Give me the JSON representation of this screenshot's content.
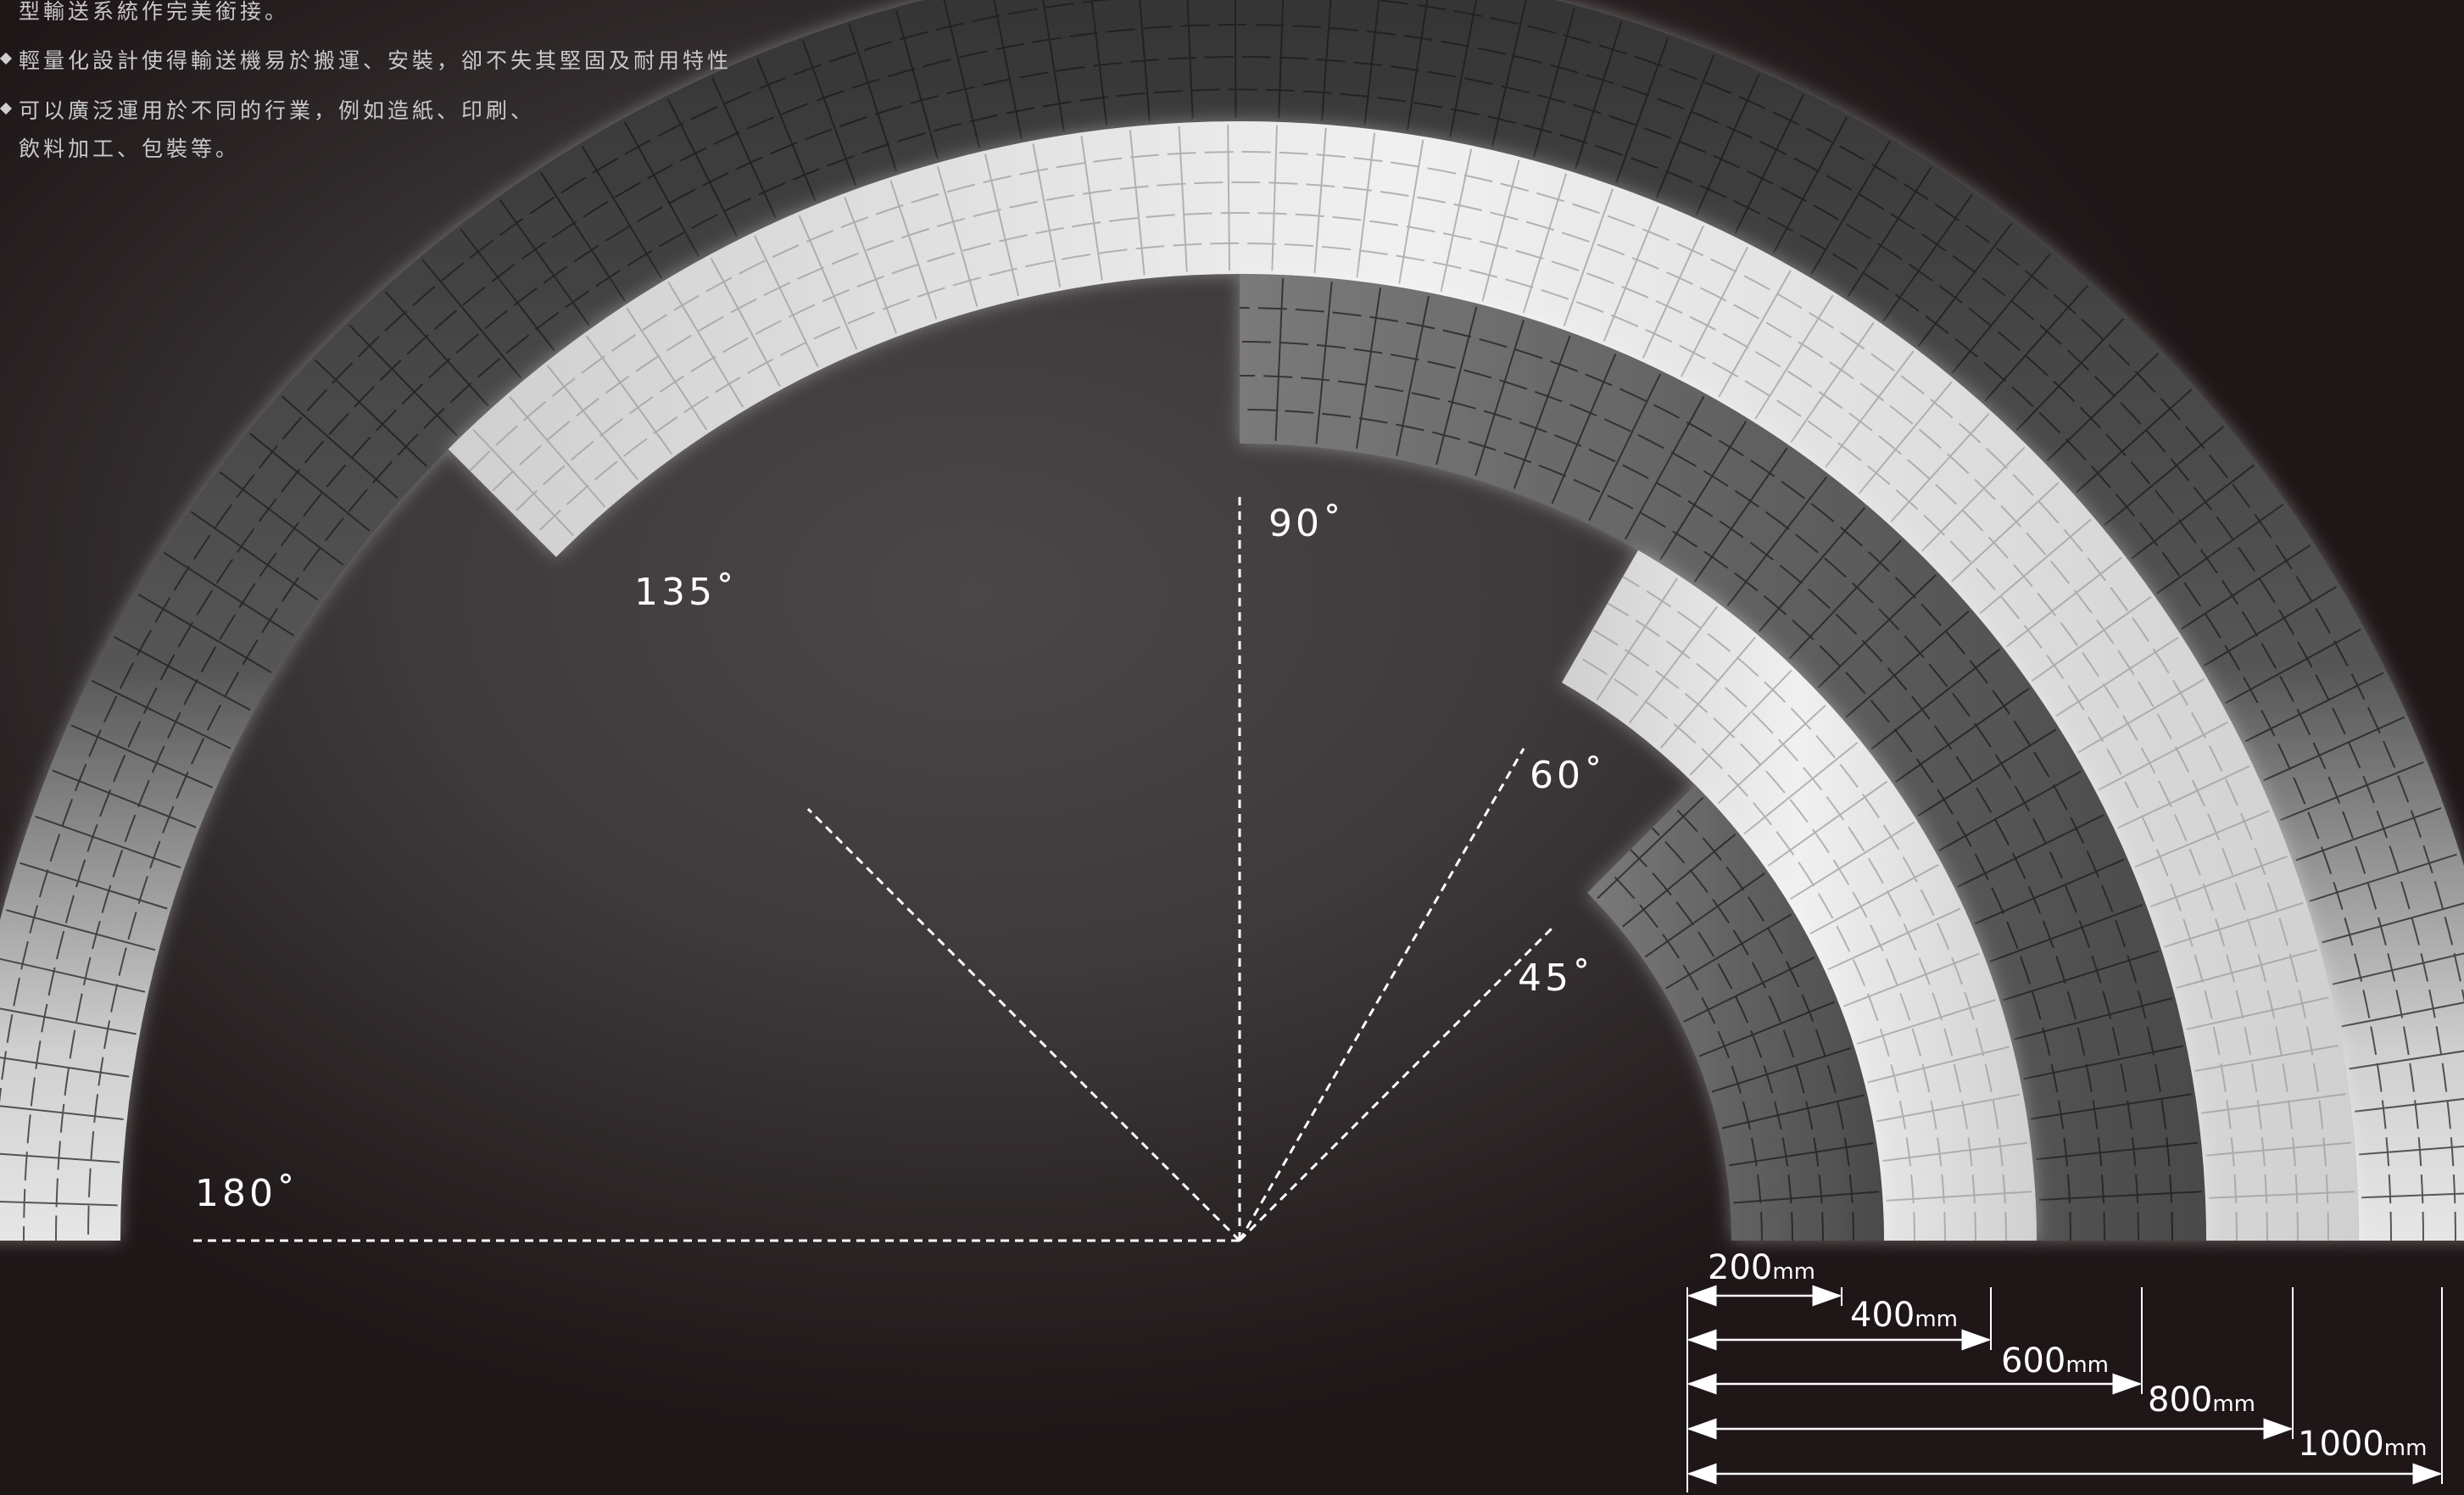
{
  "description": {
    "line_top": "型輸送系統作完美銜接。",
    "bullet_1": "輕量化設計使得輸送機易於搬運、安裝，卻不失其堅固及耐用特性",
    "bullet_2_line1": "可以廣泛運用於不同的行業，例如造紙、印刷、",
    "bullet_2_line2": "飲料加工、包裝等。"
  },
  "angles": {
    "a180": "180˚",
    "a135": "135˚",
    "a90": "90˚",
    "a60": "60˚",
    "a45": "45˚"
  },
  "widths": [
    {
      "value": "200",
      "unit": "mm"
    },
    {
      "value": "400",
      "unit": "mm"
    },
    {
      "value": "600",
      "unit": "mm"
    },
    {
      "value": "800",
      "unit": "mm"
    },
    {
      "value": "1000",
      "unit": "mm"
    }
  ],
  "colors": {
    "dark_belt": "#3a3a3a",
    "light_belt": "#d8d8d8",
    "guide_line": "#ffffff",
    "text": "#ffffff"
  }
}
